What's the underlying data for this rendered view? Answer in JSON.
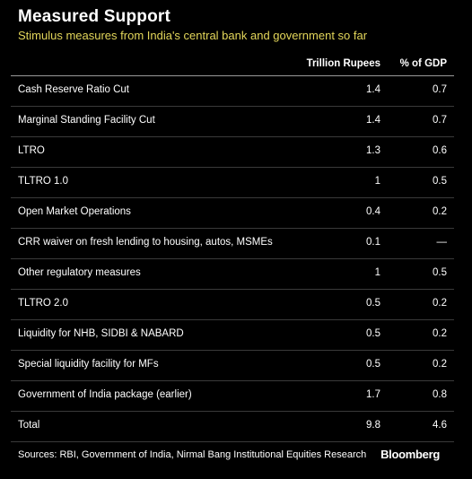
{
  "header": {
    "title": "Measured Support",
    "subtitle": "Stimulus measures from India's central bank and government so far"
  },
  "columns": [
    "Trillion Rupees",
    "% of GDP"
  ],
  "chart_data": {
    "type": "table",
    "columns": [
      "",
      "Trillion Rupees",
      "% of GDP"
    ],
    "rows": [
      {
        "label": "Cash Reserve Ratio Cut",
        "trillion_rupees": "1.4",
        "pct_gdp": "0.7"
      },
      {
        "label": "Marginal Standing Facility Cut",
        "trillion_rupees": "1.4",
        "pct_gdp": "0.7"
      },
      {
        "label": "LTRO",
        "trillion_rupees": "1.3",
        "pct_gdp": "0.6"
      },
      {
        "label": "TLTRO 1.0",
        "trillion_rupees": "1",
        "pct_gdp": "0.5"
      },
      {
        "label": "Open Market Operations",
        "trillion_rupees": "0.4",
        "pct_gdp": "0.2"
      },
      {
        "label": "CRR waiver on fresh lending to housing, autos, MSMEs",
        "trillion_rupees": "0.1",
        "pct_gdp": "—"
      },
      {
        "label": "Other regulatory measures",
        "trillion_rupees": "1",
        "pct_gdp": "0.5"
      },
      {
        "label": "TLTRO 2.0",
        "trillion_rupees": "0.5",
        "pct_gdp": "0.2"
      },
      {
        "label": "Liquidity for NHB, SIDBI & NABARD",
        "trillion_rupees": "0.5",
        "pct_gdp": "0.2"
      },
      {
        "label": "Special liquidity facility for MFs",
        "trillion_rupees": "0.5",
        "pct_gdp": "0.2"
      },
      {
        "label": "Government of India package (earlier)",
        "trillion_rupees": "1.7",
        "pct_gdp": "0.8"
      },
      {
        "label": "Total",
        "trillion_rupees": "9.8",
        "pct_gdp": "4.6"
      }
    ]
  },
  "footer": {
    "source": "Sources: RBI, Government of India, Nirmal Bang Institutional Equities Research",
    "brand": "Bloomberg"
  },
  "colors": {
    "background": "#000000",
    "text": "#ffffff",
    "subtitle": "#e3d65a",
    "divider": "#3a3a3a"
  }
}
